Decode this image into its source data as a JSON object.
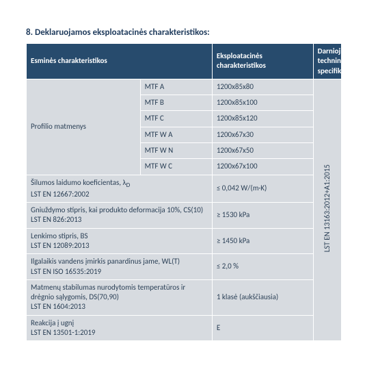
{
  "title": "8. Deklaruojamos eksploatacinės charakteristikos:",
  "headers": {
    "col1": "Esminės charakteristikos",
    "col2": "Eksploatacinės charakteristikos",
    "col3": "Darnioji techninė specifikacija"
  },
  "profileLabel": "Profilio matmenys",
  "profileRows": [
    {
      "label": "MTF A",
      "val": "1200x85x80"
    },
    {
      "label": "MTF B",
      "val": "1200x85x100"
    },
    {
      "label": "MTF C",
      "val": "1200x85x120"
    },
    {
      "label": "MTF W A",
      "val": "1200x67x30"
    },
    {
      "label": "MTF W N",
      "val": "1200x67x50"
    },
    {
      "label": "MTF W C",
      "val": "1200x67x100"
    }
  ],
  "charRows": [
    {
      "label": "Šilumos laidumo koeficientas, λ",
      "sub": "D",
      "std": "LST EN 12667:2002",
      "val": "≤ 0,042 W/(m·K)"
    },
    {
      "label": "Gniuždymo stipris, kai produkto deformacija 10%, CS(10)",
      "std": "LST EN 826:2013",
      "val": "≥ 1530 kPa"
    },
    {
      "label": "Lenkimo stipris, BS",
      "std": "LST EN 12089:2013",
      "val": "≥ 1450 kPa"
    },
    {
      "label": "Ilgalaikis vandens įmirkis panardinus jame, WL(T)",
      "std": "LST EN ISO 16535:2019",
      "val": "≤ 2,0 %"
    },
    {
      "label": "Matmenų stabilumas nurodytomis temperatūros ir drėgnio sąlygomis, DS(70,90)",
      "std": "LST EN 1604:2013",
      "val": "1 klasė (aukščiausia)"
    },
    {
      "label": "Reakcija į ugnį",
      "std": "LST EN 13501-1:2019",
      "val": "E"
    }
  ],
  "specText": "LST EN 13163:2012+A1:2015",
  "colors": {
    "headerBg": "#274b6d",
    "headerText": "#ffffff",
    "cellBg": "#d7dbe0",
    "cellText": "#2a3f55",
    "titleText": "#1f3b5c",
    "border": "#ffffff",
    "pageBg": "#ffffff"
  },
  "typography": {
    "titleFontSize": 13,
    "cellFontSize": 11,
    "fontFamily": "Calibri, Arial, sans-serif"
  },
  "tableWidths": {
    "c1": 133,
    "c2": 84,
    "c3": 118,
    "c4": 33
  }
}
